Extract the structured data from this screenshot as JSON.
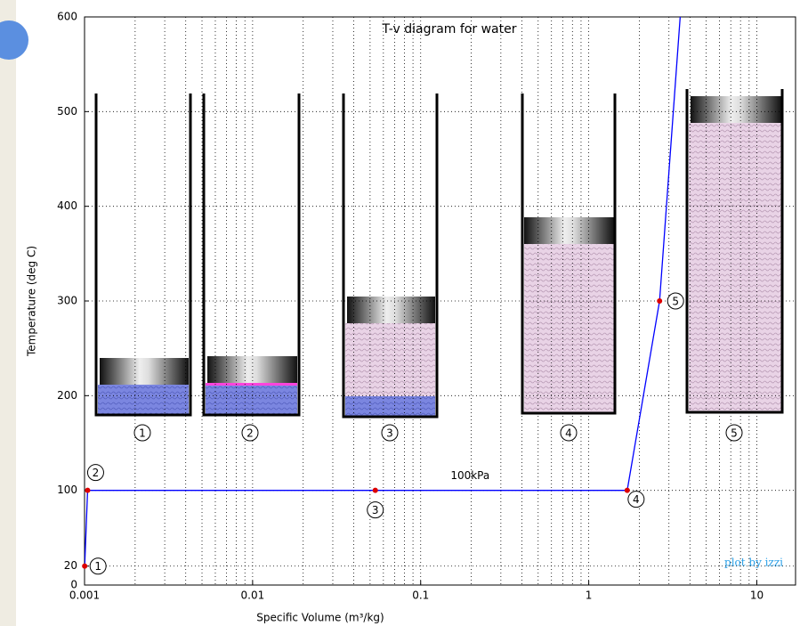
{
  "chart_data": {
    "type": "line",
    "title": "T-v diagram for water",
    "x_label": "Specific Volume (m³/kg)",
    "y_label": "Temperature (deg C)",
    "xscale": "log",
    "xlim": [
      0.001,
      17
    ],
    "xticks": [
      0.001,
      0.01,
      0.1,
      1,
      10
    ],
    "ylim": [
      0,
      600
    ],
    "yticks": [
      0,
      20,
      100,
      200,
      300,
      400,
      500,
      600
    ],
    "grid": true,
    "x": [
      0.001002,
      0.001043,
      0.0537,
      1.694,
      2.639,
      3.5
    ],
    "series": [
      {
        "name": "100kPa",
        "color": "#0000ff",
        "marker_color": "#dd0000",
        "values": [
          20,
          100,
          100,
          100,
          300,
          600
        ]
      }
    ],
    "state_labels": [
      "1",
      "2",
      "3",
      "4",
      "5"
    ],
    "illustration_labels": [
      "1",
      "2",
      "3",
      "4",
      "5"
    ],
    "credit": "plot by izzi"
  }
}
